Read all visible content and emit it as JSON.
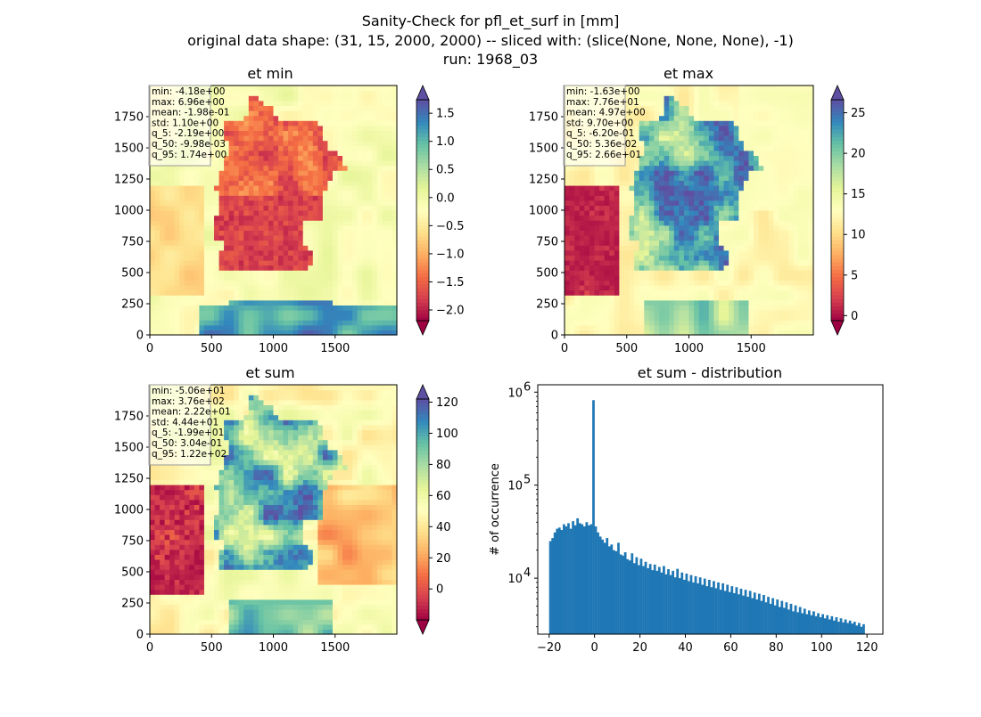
{
  "figure": {
    "title_lines": [
      "Sanity-Check for pfl_et_surf in [mm]",
      "original data shape: (31, 15, 2000, 2000) -- sliced with: (slice(None, None, None), -1)",
      "run: 1968_03"
    ]
  },
  "chart_data": [
    {
      "type": "heatmap",
      "title": "et min",
      "xlim": [
        0,
        2000
      ],
      "ylim": [
        0,
        2000
      ],
      "xticks": [
        "0",
        "500",
        "1000",
        "1500"
      ],
      "yticks": [
        "0",
        "250",
        "500",
        "750",
        "1000",
        "1250",
        "1500",
        "1750"
      ],
      "colormap": "Spectral",
      "colorbar": {
        "vmin": -2.19,
        "vmax": 1.74,
        "ticks": [
          "−2.0",
          "−1.5",
          "−1.0",
          "−0.5",
          "0.0",
          "0.5",
          "1.0",
          "1.5"
        ],
        "tick_values": [
          -2.0,
          -1.5,
          -1.0,
          -0.5,
          0.0,
          0.5,
          1.0,
          1.5
        ],
        "extend": "both"
      },
      "stats": [
        "min: -4.18e+00",
        "max: 6.96e+00",
        "mean: -1.98e-01",
        "std: 1.10e+00",
        "q_5: -2.19e+00",
        "q_50: -9.98e-03",
        "q_95: 1.74e+00"
      ]
    },
    {
      "type": "heatmap",
      "title": "et max",
      "xlim": [
        0,
        2000
      ],
      "ylim": [
        0,
        2000
      ],
      "xticks": [
        "0",
        "500",
        "1000",
        "1500"
      ],
      "yticks": [
        "0",
        "250",
        "500",
        "750",
        "1000",
        "1250",
        "1500",
        "1750"
      ],
      "colormap": "Spectral",
      "colorbar": {
        "vmin": -0.62,
        "vmax": 26.6,
        "ticks": [
          "0",
          "5",
          "10",
          "15",
          "20",
          "25"
        ],
        "tick_values": [
          0,
          5,
          10,
          15,
          20,
          25
        ],
        "extend": "both"
      },
      "stats": [
        "min: -1.63e+00",
        "max: 7.76e+01",
        "mean: 4.97e+00",
        "std: 9.70e+00",
        "q_5: -6.20e-01",
        "q_50: 5.36e-02",
        "q_95: 2.66e+01"
      ]
    },
    {
      "type": "heatmap",
      "title": "et sum",
      "xlim": [
        0,
        2000
      ],
      "ylim": [
        0,
        2000
      ],
      "xticks": [
        "0",
        "500",
        "1000",
        "1500"
      ],
      "yticks": [
        "0",
        "250",
        "500",
        "750",
        "1000",
        "1250",
        "1500",
        "1750"
      ],
      "colormap": "Spectral",
      "colorbar": {
        "vmin": -19.9,
        "vmax": 122,
        "ticks": [
          "0",
          "20",
          "40",
          "60",
          "80",
          "100",
          "120"
        ],
        "tick_values": [
          0,
          20,
          40,
          60,
          80,
          100,
          120
        ],
        "extend": "both"
      },
      "stats": [
        "min: -5.06e+01",
        "max: 3.76e+02",
        "mean: 2.22e+01",
        "std: 4.44e+01",
        "q_5: -1.99e+01",
        "q_50: 3.04e-01",
        "q_95: 1.22e+02"
      ]
    },
    {
      "type": "bar",
      "title": "et sum - distribution",
      "ylabel": "# of occurrence",
      "xlabel": "",
      "yscale": "log",
      "xlim": [
        -25,
        127
      ],
      "ylim": [
        2500,
        1200000
      ],
      "xticks": [
        "−20",
        "0",
        "20",
        "40",
        "60",
        "80",
        "100",
        "120"
      ],
      "xtick_values": [
        -20,
        0,
        20,
        40,
        60,
        80,
        100,
        120
      ],
      "yticks": [
        "10^4",
        "10^5",
        "10^6"
      ],
      "ytick_values": [
        10000,
        100000,
        1000000
      ],
      "bar_color": "#1f77b4",
      "bins_x": [
        -19.5,
        -18.5,
        -17.5,
        -16.5,
        -15.5,
        -14.5,
        -13.5,
        -12.5,
        -11.5,
        -10.5,
        -9.5,
        -8.5,
        -7.5,
        -6.5,
        -5.5,
        -4.5,
        -3.5,
        -2.5,
        -1.5,
        -0.5,
        0.5,
        1.5,
        2.5,
        3.5,
        4.5,
        5.5,
        6.5,
        7.5,
        8.5,
        9.5,
        10.5,
        11.5,
        12.5,
        13.5,
        14.5,
        15.5,
        16.5,
        17.5,
        18.5,
        19.5,
        20.5,
        21.5,
        22.5,
        23.5,
        24.5,
        25.5,
        26.5,
        27.5,
        28.5,
        29.5,
        30.5,
        31.5,
        32.5,
        33.5,
        34.5,
        35.5,
        36.5,
        37.5,
        38.5,
        39.5,
        40.5,
        41.5,
        42.5,
        43.5,
        44.5,
        45.5,
        46.5,
        47.5,
        48.5,
        49.5,
        50.5,
        51.5,
        52.5,
        53.5,
        54.5,
        55.5,
        56.5,
        57.5,
        58.5,
        59.5,
        60.5,
        61.5,
        62.5,
        63.5,
        64.5,
        65.5,
        66.5,
        67.5,
        68.5,
        69.5,
        70.5,
        71.5,
        72.5,
        73.5,
        74.5,
        75.5,
        76.5,
        77.5,
        78.5,
        79.5,
        80.5,
        81.5,
        82.5,
        83.5,
        84.5,
        85.5,
        86.5,
        87.5,
        88.5,
        89.5,
        90.5,
        91.5,
        92.5,
        93.5,
        94.5,
        95.5,
        96.5,
        97.5,
        98.5,
        99.5,
        100.5,
        101.5,
        102.5,
        103.5,
        104.5,
        105.5,
        106.5,
        107.5,
        108.5,
        109.5,
        110.5,
        111.5,
        112.5,
        113.5,
        114.5,
        115.5,
        116.5,
        117.5,
        118.5,
        119.5,
        120.5,
        121.5
      ],
      "counts": [
        25000,
        27000,
        31000,
        34000,
        35000,
        33000,
        38000,
        36000,
        39000,
        34000,
        41000,
        37000,
        44000,
        39000,
        38000,
        36000,
        40000,
        37000,
        38000,
        820000,
        36000,
        31000,
        28000,
        26000,
        24000,
        27000,
        22000,
        23000,
        20000,
        19500,
        24000,
        18000,
        17500,
        19000,
        16000,
        15500,
        18500,
        14500,
        16800,
        13800,
        16200,
        13500,
        15000,
        12800,
        14200,
        12200,
        14000,
        12000,
        13200,
        11500,
        13500,
        11000,
        12500,
        10800,
        12000,
        10200,
        12600,
        10000,
        11500,
        9600,
        11200,
        9300,
        10800,
        9000,
        10500,
        8800,
        10200,
        8500,
        9900,
        8200,
        9600,
        8000,
        9300,
        7800,
        9000,
        7500,
        8800,
        7300,
        8500,
        7100,
        8200,
        6900,
        8000,
        6700,
        7700,
        6500,
        7500,
        6300,
        7300,
        6100,
        7000,
        5900,
        6800,
        5700,
        6600,
        5500,
        6300,
        5300,
        6100,
        5100,
        5900,
        4900,
        5700,
        4800,
        5500,
        4600,
        5300,
        4400,
        5100,
        4300,
        4900,
        4200,
        4700,
        4100,
        4500,
        4000,
        4400,
        3900,
        4200,
        3800,
        4100,
        3700,
        4000,
        3600,
        3900,
        3500,
        3800,
        3400,
        3700,
        3350,
        3600,
        3300,
        3500,
        3250,
        3400,
        3100,
        3300,
        3000,
        3200
      ]
    }
  ]
}
